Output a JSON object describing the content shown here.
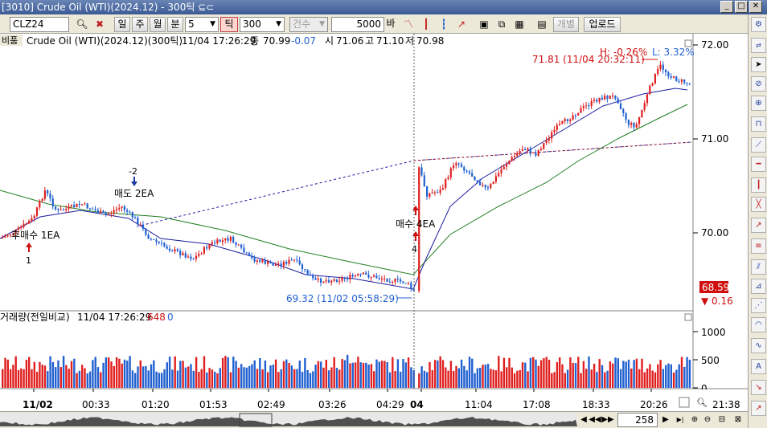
{
  "window": {
    "title": "[3010] Crude Oil (WTI)(2024.12) - 300틱 ⊆⊂"
  },
  "toolbar": {
    "symbol": "CLZ24",
    "period_buttons": [
      "일",
      "주",
      "월",
      "분"
    ],
    "minute_value": "5",
    "tick_label": "틱",
    "tick_value": "300",
    "count_label": "건수",
    "count_value": "5000",
    "bar_label": "바",
    "individual_label": "개별",
    "update_label": "업로드"
  },
  "price_panel": {
    "header_symbol": "Crude Oil (WTI)(2024.12)(300틱)",
    "header_time": "11/04 17:26:29",
    "close_label": "종",
    "close": "70.99",
    "change": "-0.07",
    "open_label": "시",
    "open": "71.06",
    "high_label": "고",
    "high": "71.10",
    "low_label": "저",
    "low": "70.98",
    "left_tab": "비품",
    "y_ticks": [
      "72.00",
      "71.00",
      "70.00"
    ],
    "current_price": "68.59",
    "current_change": "▼ 0.16",
    "high_annotation": "71.81 (11/04 20:32:11)",
    "low_annotation": "69.32 (11/02 05:58:29)",
    "hl_h": "H: -0.26%",
    "hl_l": "L: 3.32%",
    "signals": [
      {
        "text": "후매수 1EA",
        "count": "1"
      },
      {
        "text": "매도 2EA",
        "count": "-2"
      },
      {
        "text": "매수 4EA",
        "count": "4"
      }
    ]
  },
  "volume_panel": {
    "title": "거래량(전일비교)",
    "time": "11/04 17:26:29",
    "value": "648",
    "change": "0",
    "y_ticks": [
      "1000",
      "500",
      "0"
    ]
  },
  "x_axis": {
    "labels": [
      "11/02",
      "00:33",
      "01:20",
      "01:53",
      "02:49",
      "03:26",
      "04:29",
      "04",
      "11:04",
      "17:08",
      "18:33",
      "20:26",
      "21:38"
    ]
  },
  "scroll": {
    "bar_count": "258"
  },
  "colors": {
    "up": "#e02020",
    "down": "#2060d0",
    "ma_short": "#1a1aa0",
    "ma_long": "#208020",
    "dotted": "#1a1aa0",
    "accent_red": "#d01010"
  }
}
